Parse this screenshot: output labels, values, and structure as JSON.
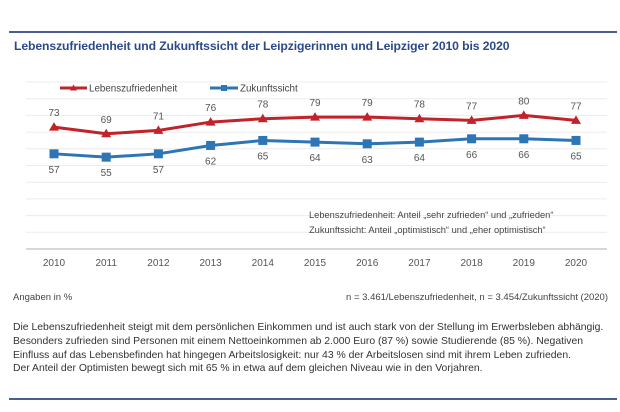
{
  "header": {
    "title": "Lebenszufriedenheit und Zukunftssicht der Leipzigerinnen und Leipziger 2010 bis 2020"
  },
  "chart_data": {
    "type": "line",
    "title": "Lebenszufriedenheit und Zukunftssicht der Leipzigerinnen und Leipziger 2010 bis 2020",
    "xlabel": "",
    "ylabel": "",
    "x": [
      "2010",
      "2011",
      "2012",
      "2013",
      "2014",
      "2015",
      "2016",
      "2017",
      "2018",
      "2019",
      "2020"
    ],
    "ylim": [
      0,
      100
    ],
    "grid": true,
    "legend_position": "top-left",
    "series": [
      {
        "name": "Lebenszufriedenheit",
        "color": "#c1232b",
        "marker": "triangle",
        "label_position": "above",
        "values": [
          73,
          69,
          71,
          76,
          78,
          79,
          79,
          78,
          77,
          80,
          77
        ]
      },
      {
        "name": "Zukunftssicht",
        "color": "#2e75b6",
        "marker": "square",
        "label_position": "below",
        "values": [
          57,
          55,
          57,
          62,
          65,
          64,
          63,
          64,
          66,
          66,
          65
        ]
      }
    ],
    "annotations": [
      "Lebenszufriedenheit: Anteil „sehr zufrieden“ und „zufrieden“",
      "Zukunftssicht: Anteil „optimistisch“ und „eher optimistisch“"
    ]
  },
  "footer": {
    "unit_note": "Angaben in %",
    "sample_note": "n = 3.461/Lebenszufriedenheit, n = 3.454/Zukunftssicht (2020)"
  },
  "body": {
    "paragraph1": "Die Lebenszufriedenheit steigt mit dem persönlichen Einkommen und ist auch stark von der Stellung im Erwerbsleben abhängig. Besonders zufrieden sind Personen mit einem Nettoeinkommen ab 2.000 Euro (87 %) sowie Studierende (85 %). Negativen Einfluss auf das Lebensbefinden hat hingegen Arbeitslosigkeit: nur 43 % der Arbeitslosen sind mit ihrem Leben zufrieden.",
    "paragraph2": "Der Anteil der Optimisten bewegt sich mit 65 % in etwa auf dem gleichen Niveau wie in den Vorjahren."
  }
}
